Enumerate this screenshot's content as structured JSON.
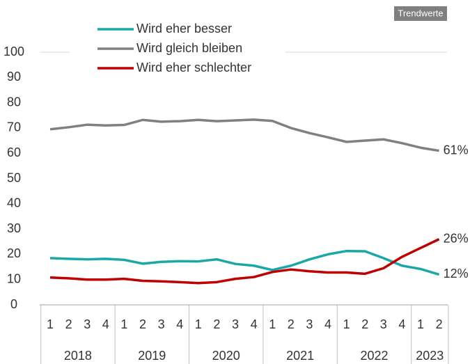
{
  "chart_data": {
    "type": "line",
    "badge": "Trendwerte",
    "groups": [
      {
        "name": "2018",
        "categories": [
          "1",
          "2",
          "3",
          "4"
        ]
      },
      {
        "name": "2019",
        "categories": [
          "1",
          "2",
          "3",
          "4"
        ]
      },
      {
        "name": "2020",
        "categories": [
          "1",
          "2",
          "3",
          "4"
        ]
      },
      {
        "name": "2021",
        "categories": [
          "1",
          "2",
          "3",
          "4"
        ]
      },
      {
        "name": "2022",
        "categories": [
          "1",
          "2",
          "3",
          "4"
        ]
      },
      {
        "name": "2023",
        "categories": [
          "1",
          "2"
        ]
      }
    ],
    "series": [
      {
        "name": "Wird eher besser",
        "color": "#1aa7a8",
        "values": [
          18.5,
          18.2,
          18,
          18.2,
          17.8,
          16.3,
          17,
          17.3,
          17.2,
          18,
          16.2,
          15.5,
          13.8,
          15.5,
          18,
          20,
          21.3,
          21.2,
          18.5,
          15.5,
          14.2,
          12
        ],
        "value_labels": [
          null,
          null,
          null,
          null,
          null,
          null,
          null,
          null,
          null,
          null,
          null,
          null,
          null,
          null,
          null,
          null,
          null,
          null,
          null,
          null,
          null,
          "12%"
        ]
      },
      {
        "name": "Wird gleich bleiben",
        "color": "#808080",
        "values": [
          69.5,
          70.3,
          71.3,
          71,
          71.2,
          73.2,
          72.5,
          72.7,
          73.2,
          72.7,
          73,
          73.3,
          72.8,
          70,
          68,
          66.3,
          64.5,
          65,
          65.5,
          64,
          62.2,
          61
        ],
        "value_labels": [
          null,
          null,
          null,
          null,
          null,
          null,
          null,
          null,
          null,
          null,
          null,
          null,
          null,
          null,
          null,
          null,
          null,
          null,
          null,
          null,
          null,
          "61%"
        ]
      },
      {
        "name": "Wird eher schlechter",
        "color": "#c00000",
        "values": [
          10.8,
          10.5,
          10,
          10,
          10.3,
          9.5,
          9.3,
          9,
          8.6,
          9,
          10.3,
          11,
          13,
          14,
          13.3,
          12.8,
          12.8,
          12.3,
          14.5,
          19,
          22.5,
          26
        ],
        "value_labels": [
          null,
          null,
          null,
          null,
          null,
          null,
          null,
          null,
          null,
          null,
          null,
          null,
          null,
          null,
          null,
          null,
          null,
          null,
          null,
          null,
          null,
          "26%"
        ]
      }
    ],
    "ylim": [
      0,
      100
    ],
    "yticks": [
      0,
      10,
      20,
      30,
      40,
      50,
      60,
      70,
      80,
      90,
      100
    ]
  }
}
